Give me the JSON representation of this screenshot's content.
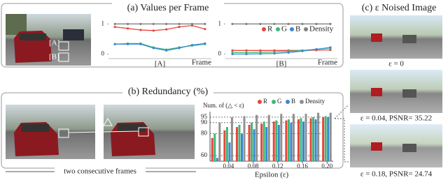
{
  "panels": {
    "a_title": "(a) Values per Frame",
    "b_title": "(b) Redundancy (%)",
    "c_title": "(c) ε Noised Image",
    "photo_labels": [
      "[A]",
      "[B]"
    ],
    "frames_caption": "two consecutive frames",
    "noised_captions": [
      "ε = 0",
      "ε = 0.04, PSNR= 35.22",
      "ε = 0.18, PSNR= 24.74"
    ]
  },
  "chart_data": [
    {
      "type": "line",
      "label": "[A]",
      "xlabel": "Frame",
      "categories": [
        null,
        null,
        null,
        null,
        null,
        null,
        null,
        null
      ],
      "ylim": [
        -0.15,
        1.1
      ],
      "yticks": [
        0,
        1
      ],
      "series": [
        {
          "name": "R",
          "color": "#e8453c",
          "values": [
            0.9,
            0.85,
            0.8,
            0.78,
            0.82,
            0.9,
            0.95,
            0.83
          ]
        },
        {
          "name": "G",
          "color": "#3cb878",
          "values": [
            0.33,
            0.35,
            0.35,
            0.22,
            0.15,
            0.22,
            0.28,
            0.33
          ]
        },
        {
          "name": "B",
          "color": "#3a86d0",
          "values": [
            0.33,
            0.33,
            0.33,
            0.2,
            0.12,
            0.2,
            0.3,
            0.35
          ]
        },
        {
          "name": "Density",
          "color": "#808080",
          "values": [
            1,
            1,
            1,
            1,
            1,
            1,
            1,
            1
          ]
        }
      ]
    },
    {
      "type": "line",
      "label": "[B]",
      "xlabel": "Frame",
      "legend": "upper right",
      "categories": [
        null,
        null,
        null,
        null,
        null,
        null,
        null,
        null
      ],
      "ylim": [
        -0.15,
        1.1
      ],
      "yticks": [
        0,
        1
      ],
      "series": [
        {
          "name": "R",
          "color": "#e8453c",
          "values": [
            0.12,
            0.12,
            0.12,
            0.12,
            0.12,
            0.12,
            0.13,
            0.14
          ]
        },
        {
          "name": "G",
          "color": "#3cb878",
          "values": [
            0.05,
            0.05,
            0.06,
            0.07,
            0.09,
            0.12,
            0.16,
            0.2
          ]
        },
        {
          "name": "B",
          "color": "#3a86d0",
          "values": [
            0,
            0,
            0.01,
            0.02,
            0.05,
            0.1,
            0.16,
            0.22
          ]
        },
        {
          "name": "Density",
          "color": "#808080",
          "values": [
            1,
            1,
            1,
            1,
            1,
            1,
            1,
            1
          ]
        }
      ]
    },
    {
      "type": "bar",
      "xlabel": "Epsilon (ε)",
      "ylabel": "Num. of (△ < ε)",
      "legend": "upper right",
      "grid": true,
      "x": [
        0.02,
        0.04,
        0.06,
        0.08,
        0.1,
        0.12,
        0.14,
        0.16,
        0.18,
        0.2
      ],
      "xlim": [
        0.01,
        0.21
      ],
      "xticks": [
        0.04,
        0.08,
        0.12,
        0.16,
        {
          "value": 0.2,
          "label": "0.20"
        }
      ],
      "ylim": [
        55,
        100
      ],
      "yticks": [
        60,
        80,
        90,
        95
      ],
      "series": [
        {
          "name": "R",
          "color": "#e8453c",
          "values": [
            76,
            83,
            86,
            88,
            89,
            91,
            92,
            93,
            94,
            95
          ]
        },
        {
          "name": "G",
          "color": "#3cb878",
          "values": [
            80,
            86,
            88,
            90,
            91,
            92,
            93,
            94,
            95,
            96
          ]
        },
        {
          "name": "B",
          "color": "#3a86d0",
          "values": [
            58,
            72,
            80,
            84,
            86,
            88,
            90,
            91,
            93,
            95
          ]
        },
        {
          "name": "Density",
          "color": "#909090",
          "values": [
            90,
            95,
            96,
            97,
            97,
            98,
            98,
            98,
            99,
            99
          ]
        }
      ]
    }
  ]
}
